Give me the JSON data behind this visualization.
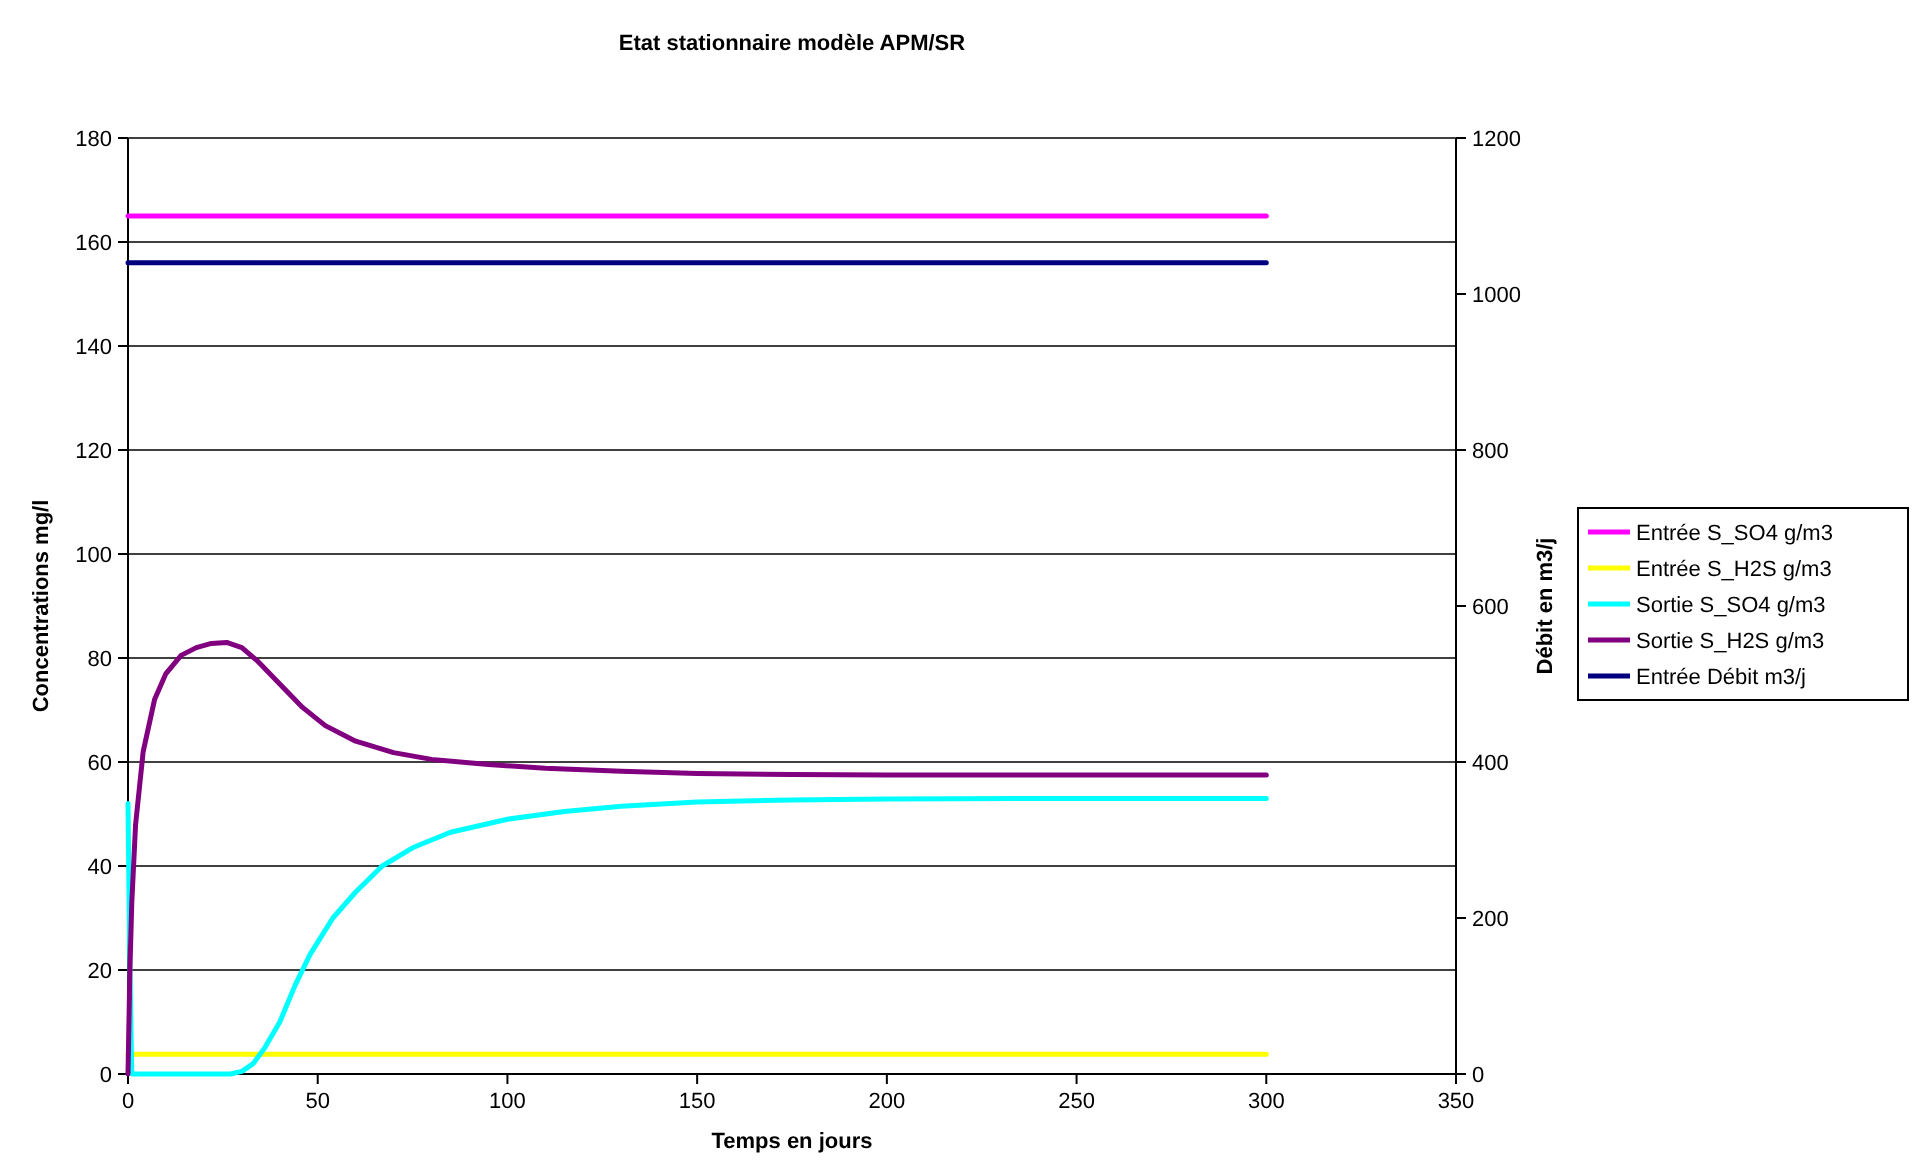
{
  "chart_data": {
    "type": "line",
    "title": "Etat stationnaire modèle APM/SR",
    "xlabel": "Temps en jours",
    "ylabel": "Concentrations mg/l",
    "y2label": "Débit en m3/j",
    "xlim": [
      0,
      350
    ],
    "xticks": [
      0,
      50,
      100,
      150,
      200,
      250,
      300,
      350
    ],
    "ylim": [
      0,
      180
    ],
    "yticks": [
      0,
      20,
      40,
      60,
      80,
      100,
      120,
      140,
      160,
      180
    ],
    "y2lim": [
      0,
      1200
    ],
    "y2ticks": [
      0,
      200,
      400,
      600,
      800,
      1000,
      1200
    ],
    "grid": "y",
    "legend": "right",
    "marker": "none",
    "line_style": "solid",
    "series": [
      {
        "name": "Entrée S_SO4 g/m3",
        "color": "#ff00ff",
        "x": [
          0,
          300
        ],
        "values": [
          165,
          165
        ]
      },
      {
        "name": "Entrée S_H2S g/m3",
        "color": "#ffff00",
        "x": [
          0,
          300
        ],
        "values": [
          3.8,
          3.8
        ]
      },
      {
        "name": "Sortie S_SO4 g/m3",
        "color": "#00ffff",
        "x": [
          0,
          0.5,
          1,
          10,
          20,
          27,
          30,
          33,
          36,
          40,
          44,
          48,
          54,
          60,
          67,
          75,
          85,
          100,
          115,
          130,
          150,
          175,
          200,
          250,
          300
        ],
        "values": [
          52,
          20,
          0,
          0,
          0,
          0,
          0.5,
          2,
          5,
          10,
          17,
          23,
          30,
          35,
          40,
          43.5,
          46.5,
          49,
          50.5,
          51.5,
          52.3,
          52.7,
          52.9,
          53,
          53
        ]
      },
      {
        "name": "Sortie S_H2S g/m3",
        "color": "#800080",
        "x": [
          0,
          0.5,
          1,
          2,
          4,
          7,
          10,
          14,
          18,
          22,
          26,
          30,
          34,
          40,
          46,
          52,
          60,
          70,
          80,
          95,
          110,
          130,
          150,
          175,
          200,
          250,
          300
        ],
        "values": [
          0,
          20,
          33,
          48,
          62,
          72,
          77,
          80.5,
          82,
          82.8,
          83,
          82,
          79.5,
          75,
          70.5,
          67,
          64,
          61.8,
          60.5,
          59.5,
          58.8,
          58.2,
          57.8,
          57.6,
          57.5,
          57.5,
          57.5
        ]
      },
      {
        "name": "Entrée Débit m3/j",
        "color": "#000080",
        "axis": "y2",
        "x": [
          0,
          300
        ],
        "values": [
          1040,
          1040
        ]
      }
    ]
  }
}
